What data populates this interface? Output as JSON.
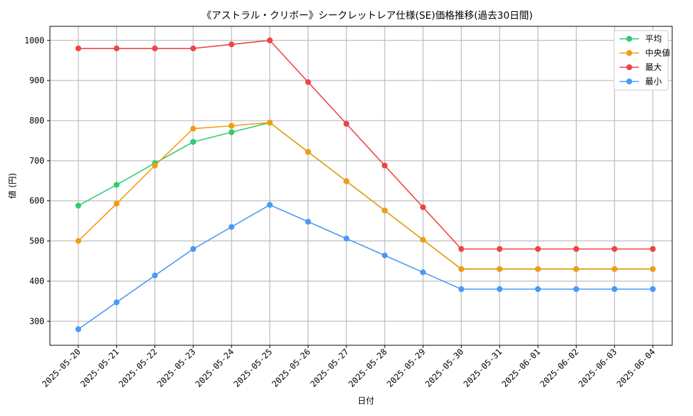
{
  "chart_data": {
    "type": "line",
    "title": "《アストラル・クリボー》シークレットレア仕様(SE)価格推移(過去30日間)",
    "xlabel": "日付",
    "ylabel": "値 (円)",
    "ylim": [
      240,
      1035
    ],
    "yticks": [
      300,
      400,
      500,
      600,
      700,
      800,
      900,
      1000
    ],
    "grid": true,
    "legend_position": "top-right",
    "categories": [
      "2025-05-20",
      "2025-05-21",
      "2025-05-22",
      "2025-05-23",
      "2025-05-24",
      "2025-05-25",
      "2025-05-26",
      "2025-05-27",
      "2025-05-28",
      "2025-05-29",
      "2025-05-30",
      "2025-05-31",
      "2025-06-01",
      "2025-06-02",
      "2025-06-03",
      "2025-06-04"
    ],
    "series": [
      {
        "name": "平均",
        "color": "#2ecc71",
        "values": [
          588,
          640,
          694,
          747,
          771,
          795,
          722,
          649,
          576,
          503,
          430,
          430,
          430,
          430,
          430,
          430
        ]
      },
      {
        "name": "中央値",
        "color": "#f39c12",
        "values": [
          500,
          593,
          688,
          780,
          787,
          795,
          722,
          649,
          576,
          503,
          430,
          430,
          430,
          430,
          430,
          430
        ]
      },
      {
        "name": "最大",
        "color": "#ef4444",
        "values": [
          980,
          980,
          980,
          980,
          990,
          1000,
          896,
          792,
          688,
          584,
          480,
          480,
          480,
          480,
          480,
          480
        ]
      },
      {
        "name": "最小",
        "color": "#4a9af5",
        "values": [
          280,
          347,
          414,
          480,
          535,
          590,
          548,
          506,
          464,
          422,
          380,
          380,
          380,
          380,
          380,
          380
        ]
      }
    ]
  }
}
